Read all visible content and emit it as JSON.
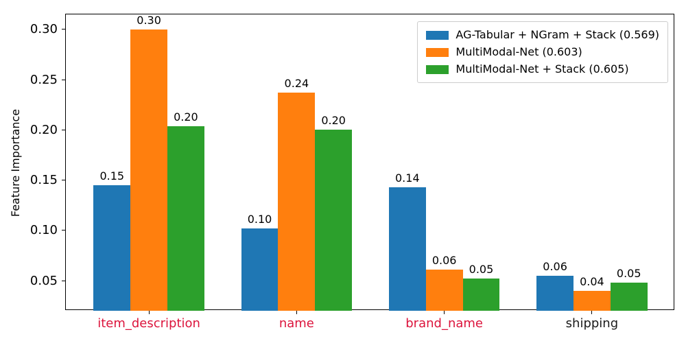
{
  "chart_data": {
    "type": "bar",
    "title": "",
    "xlabel": "",
    "ylabel": "Feature Importance",
    "categories": [
      "item_description",
      "name",
      "brand_name",
      "shipping"
    ],
    "category_label_colors": [
      "#dc143c",
      "#dc143c",
      "#dc143c",
      "#1a1a1a"
    ],
    "series": [
      {
        "name": "AG-Tabular + NGram + Stack (0.569)",
        "color": "#1f77b4",
        "values": [
          0.145,
          0.102,
          0.143,
          0.055
        ],
        "value_labels": [
          "0.15",
          "0.10",
          "0.14",
          "0.06"
        ]
      },
      {
        "name": "MultiModal-Net (0.603)",
        "color": "#ff7f0e",
        "values": [
          0.3,
          0.237,
          0.061,
          0.04
        ],
        "value_labels": [
          "0.30",
          "0.24",
          "0.06",
          "0.04"
        ]
      },
      {
        "name": "MultiModal-Net + Stack (0.605)",
        "color": "#2ca02c",
        "values": [
          0.204,
          0.2,
          0.052,
          0.048
        ],
        "value_labels": [
          "0.20",
          "0.20",
          "0.05",
          "0.05"
        ]
      }
    ],
    "y_ticks": [
      {
        "value": 0.05,
        "label": "0.05"
      },
      {
        "value": 0.1,
        "label": "0.10"
      },
      {
        "value": 0.15,
        "label": "0.15"
      },
      {
        "value": 0.2,
        "label": "0.20"
      },
      {
        "value": 0.25,
        "label": "0.25"
      },
      {
        "value": 0.3,
        "label": "0.30"
      }
    ],
    "ylim": [
      0.02,
      0.315
    ],
    "grid": false,
    "legend_position": "upper right",
    "axis_color": "#000000",
    "value_label_color": "#000000"
  }
}
